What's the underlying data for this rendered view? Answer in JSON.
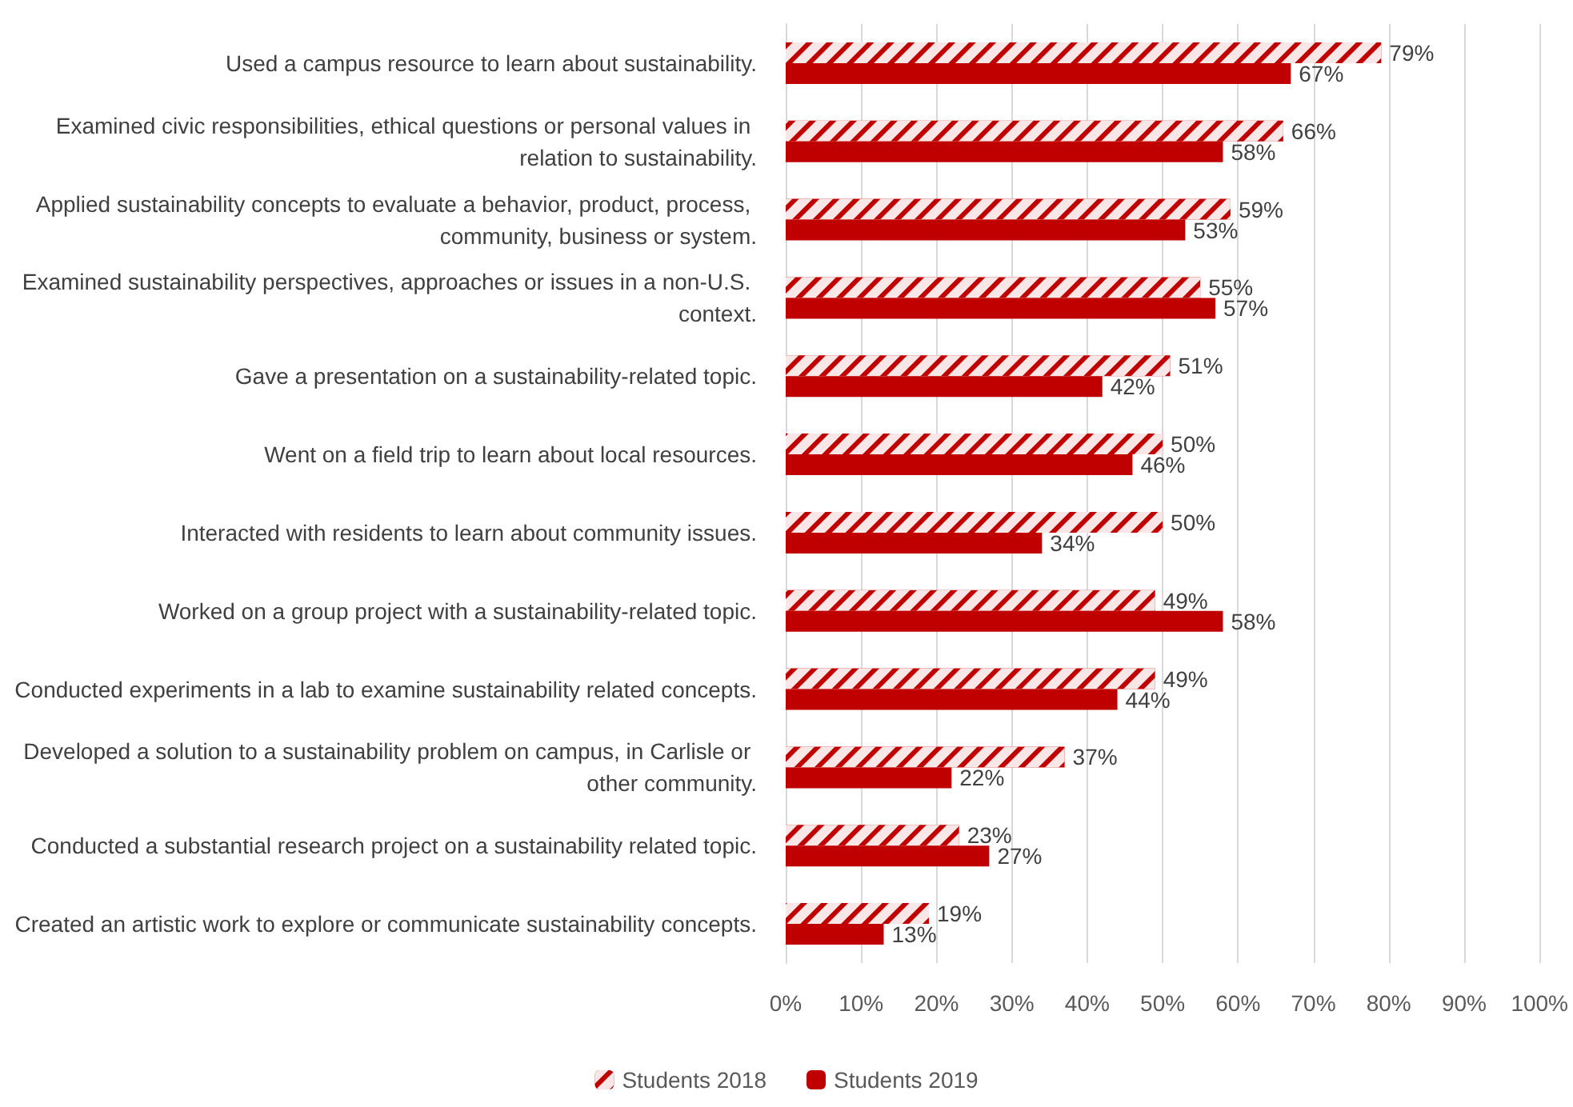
{
  "chart_data": {
    "type": "bar",
    "orientation": "horizontal",
    "categories": [
      "Used a campus resource to learn about sustainability.",
      "Examined civic responsibilities, ethical questions or personal values in relation to sustainability.",
      "Applied sustainability concepts to evaluate a behavior, product, process, community, business or system.",
      "Examined sustainability perspectives, approaches or issues in a non-U.S. context.",
      "Gave a presentation on a sustainability-related topic.",
      "Went on a field trip to learn about local resources.",
      "Interacted with residents to learn about community issues.",
      "Worked on a group project with a sustainability-related topic.",
      "Conducted experiments in a lab to examine sustainability related concepts.",
      "Developed a solution to a sustainability problem on campus, in Carlisle or other community.",
      "Conducted a substantial research project on a sustainability related topic.",
      "Created an artistic work to explore or communicate sustainability concepts."
    ],
    "series": [
      {
        "name": "Students 2018",
        "color": "#c00000",
        "values": [
          79,
          66,
          59,
          55,
          51,
          50,
          50,
          49,
          49,
          37,
          23,
          19
        ],
        "value_labels": [
          "79%",
          "66%",
          "59%",
          "55%",
          "51%",
          "50%",
          "50%",
          "49%",
          "49%",
          "37%",
          "23%",
          "19%"
        ]
      },
      {
        "name": "Students 2019",
        "color": "#c00000",
        "values": [
          67,
          58,
          53,
          57,
          42,
          46,
          34,
          58,
          44,
          22,
          27,
          13
        ],
        "value_labels": [
          "67%",
          "58%",
          "53%",
          "57%",
          "42%",
          "46%",
          "34%",
          "58%",
          "44%",
          "22%",
          "27%",
          "13%"
        ]
      }
    ],
    "xlim": [
      0,
      100
    ],
    "xticks": [
      {
        "value": 0,
        "label": "0%"
      },
      {
        "value": 10,
        "label": "10%"
      },
      {
        "value": 20,
        "label": "20%"
      },
      {
        "value": 30,
        "label": "30%"
      },
      {
        "value": 40,
        "label": "40%"
      },
      {
        "value": 50,
        "label": "50%"
      },
      {
        "value": 60,
        "label": "60%"
      },
      {
        "value": 70,
        "label": "70%"
      },
      {
        "value": 80,
        "label": "80%"
      },
      {
        "value": 90,
        "label": "90%"
      },
      {
        "value": 100,
        "label": "100%"
      }
    ],
    "grid": "x",
    "legend": "bottom"
  }
}
